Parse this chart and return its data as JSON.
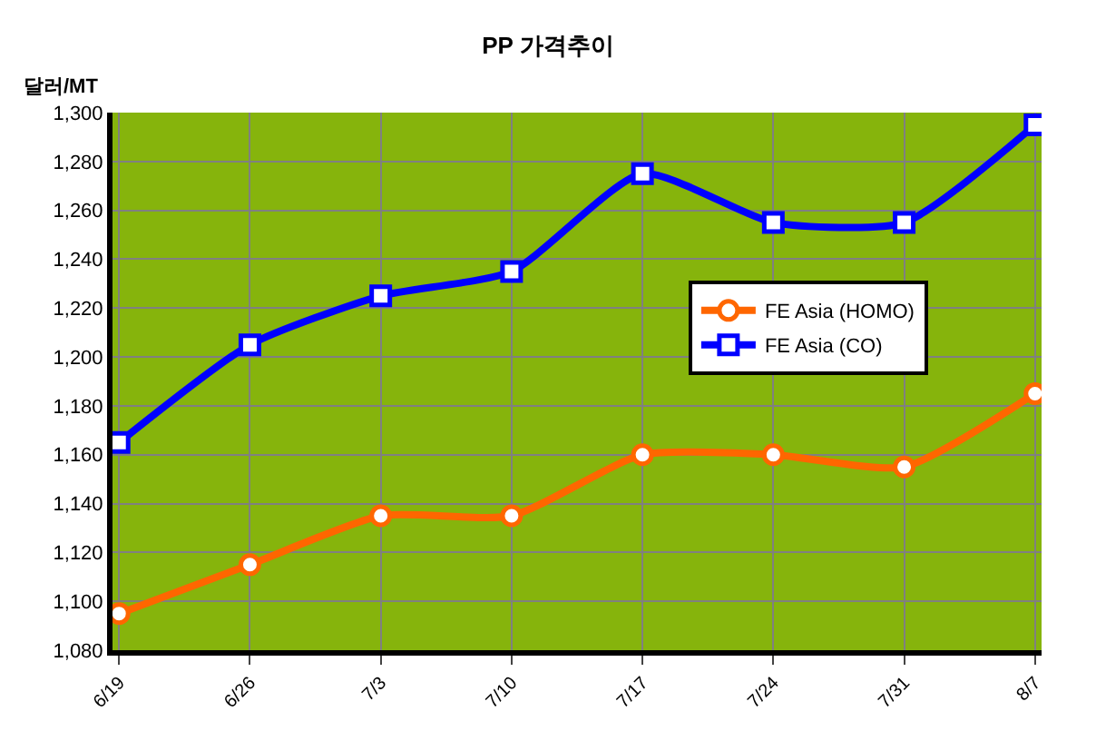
{
  "chart_data": {
    "type": "line",
    "title": "PP 가격추이",
    "ylabel": "달러/MT",
    "categories": [
      "6/19",
      "6/26",
      "7/3",
      "7/10",
      "7/17",
      "7/24",
      "7/31",
      "8/7"
    ],
    "series": [
      {
        "name": "FE Asia (HOMO)",
        "color": "#ff6600",
        "marker": "circle",
        "values": [
          1095,
          1115,
          1135,
          1135,
          1160,
          1160,
          1155,
          1185
        ]
      },
      {
        "name": "FE Asia (CO)",
        "color": "#0000ff",
        "marker": "square",
        "values": [
          1165,
          1205,
          1225,
          1235,
          1275,
          1255,
          1255,
          1295
        ]
      }
    ],
    "ylim": [
      1080,
      1300
    ],
    "yticks": [
      {
        "value": 1080,
        "label": "1,080"
      },
      {
        "value": 1100,
        "label": "1,100"
      },
      {
        "value": 1120,
        "label": "1,120"
      },
      {
        "value": 1140,
        "label": "1,140"
      },
      {
        "value": 1160,
        "label": "1,160"
      },
      {
        "value": 1180,
        "label": "1,180"
      },
      {
        "value": 1200,
        "label": "1,200"
      },
      {
        "value": 1220,
        "label": "1,220"
      },
      {
        "value": 1240,
        "label": "1,240"
      },
      {
        "value": 1260,
        "label": "1,260"
      },
      {
        "value": 1280,
        "label": "1,280"
      },
      {
        "value": 1300,
        "label": "1,300"
      }
    ],
    "grid": true,
    "legend": "right",
    "line_style": "solid"
  }
}
